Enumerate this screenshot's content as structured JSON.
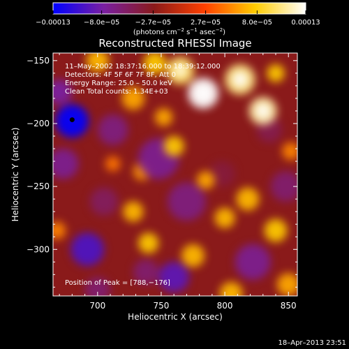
{
  "chart_data": {
    "type": "heatmap",
    "title": "Reconstructed RHESSI Image",
    "xlabel": "Heliocentric X (arcsec)",
    "ylabel": "Heliocentric Y (arcsec)",
    "xlim": [
      665,
      857
    ],
    "ylim": [
      -337,
      -144
    ],
    "xticks": [
      {
        "value": 700,
        "label": "700"
      },
      {
        "value": 750,
        "label": "750"
      },
      {
        "value": 800,
        "label": "800"
      },
      {
        "value": 850,
        "label": "850"
      }
    ],
    "yticks": [
      {
        "value": -150,
        "label": "−150"
      },
      {
        "value": -200,
        "label": "−200"
      },
      {
        "value": -250,
        "label": "−250"
      },
      {
        "value": -300,
        "label": "−300"
      }
    ],
    "colorbar": {
      "range": [
        -0.00013,
        0.00013
      ],
      "ticks": [
        {
          "value": -0.00013,
          "label": "−0.00013"
        },
        {
          "value": -8e-05,
          "label": "−8.0e−05"
        },
        {
          "value": -2.7e-05,
          "label": "−2.7e−05"
        },
        {
          "value": 2.7e-05,
          "label": "2.7e−05"
        },
        {
          "value": 8e-05,
          "label": "8.0e−05"
        },
        {
          "value": 0.00013,
          "label": "0.00013"
        }
      ],
      "units": {
        "pre": "(photons cm",
        "e1": "−2",
        "mid": " s",
        "e2": "−1",
        "mid2": " asec",
        "e3": "−2",
        "post": ")"
      },
      "colormap": [
        "#0000ff",
        "#7a1fa2",
        "#8a1a1a",
        "#ff4000",
        "#ffcc00",
        "#ffffff"
      ]
    },
    "annotations": {
      "date_line": "11–May–2002 18:37:16.000 to 18:39:12.000",
      "detectors_line": "Detectors: 4F 5F 6F 7F 8F, Att 0",
      "energy_line": "Energy Range: 25.0 – 50.0 keV",
      "clean_line": "Clean    Total counts: 1.34E+03",
      "peak_line": "Position of Peak = [788,−176]"
    },
    "peak": {
      "x": 788,
      "y": -176
    },
    "marker": {
      "x": 680,
      "y": -197
    },
    "blobs": [
      {
        "x": 680,
        "y": -198,
        "r": 13,
        "v": -1.0
      },
      {
        "x": 670,
        "y": -175,
        "r": 10,
        "v": -0.6
      },
      {
        "x": 673,
        "y": -232,
        "r": 12,
        "v": -0.55
      },
      {
        "x": 692,
        "y": -300,
        "r": 13,
        "v": -0.75
      },
      {
        "x": 705,
        "y": -262,
        "r": 11,
        "v": -0.4
      },
      {
        "x": 712,
        "y": -205,
        "r": 12,
        "v": -0.5
      },
      {
        "x": 748,
        "y": -228,
        "r": 16,
        "v": -0.55
      },
      {
        "x": 770,
        "y": -262,
        "r": 15,
        "v": -0.5
      },
      {
        "x": 760,
        "y": -322,
        "r": 12,
        "v": -0.7
      },
      {
        "x": 738,
        "y": -318,
        "r": 10,
        "v": -0.45
      },
      {
        "x": 822,
        "y": -310,
        "r": 14,
        "v": -0.55
      },
      {
        "x": 848,
        "y": -250,
        "r": 12,
        "v": -0.45
      },
      {
        "x": 835,
        "y": -205,
        "r": 10,
        "v": -0.35
      },
      {
        "x": 798,
        "y": -240,
        "r": 10,
        "v": -0.3
      },
      {
        "x": 700,
        "y": -332,
        "r": 10,
        "v": -0.45
      },
      {
        "x": 783,
        "y": -176,
        "r": 12,
        "v": 1.0
      },
      {
        "x": 765,
        "y": -158,
        "r": 11,
        "v": 0.75
      },
      {
        "x": 812,
        "y": -165,
        "r": 12,
        "v": 0.8
      },
      {
        "x": 830,
        "y": -190,
        "r": 11,
        "v": 0.85
      },
      {
        "x": 745,
        "y": -152,
        "r": 9,
        "v": 0.6
      },
      {
        "x": 700,
        "y": -150,
        "r": 9,
        "v": 0.55
      },
      {
        "x": 728,
        "y": -180,
        "r": 9,
        "v": 0.5
      },
      {
        "x": 752,
        "y": -195,
        "r": 7,
        "v": 0.5
      },
      {
        "x": 760,
        "y": -218,
        "r": 8,
        "v": 0.6
      },
      {
        "x": 735,
        "y": -238,
        "r": 7,
        "v": 0.45
      },
      {
        "x": 728,
        "y": -270,
        "r": 8,
        "v": 0.55
      },
      {
        "x": 740,
        "y": -295,
        "r": 8,
        "v": 0.6
      },
      {
        "x": 775,
        "y": -305,
        "r": 9,
        "v": 0.55
      },
      {
        "x": 785,
        "y": -245,
        "r": 7,
        "v": 0.5
      },
      {
        "x": 800,
        "y": -275,
        "r": 8,
        "v": 0.55
      },
      {
        "x": 818,
        "y": -260,
        "r": 9,
        "v": 0.55
      },
      {
        "x": 840,
        "y": -285,
        "r": 9,
        "v": 0.6
      },
      {
        "x": 805,
        "y": -335,
        "r": 9,
        "v": 0.55
      },
      {
        "x": 850,
        "y": -328,
        "r": 9,
        "v": 0.5
      },
      {
        "x": 668,
        "y": -285,
        "r": 7,
        "v": 0.4
      },
      {
        "x": 712,
        "y": -232,
        "r": 6,
        "v": 0.35
      },
      {
        "x": 840,
        "y": -160,
        "r": 7,
        "v": 0.6
      },
      {
        "x": 852,
        "y": -222,
        "r": 7,
        "v": 0.4
      }
    ]
  },
  "footer": {
    "timestamp": "18–Apr–2013 23:51"
  }
}
